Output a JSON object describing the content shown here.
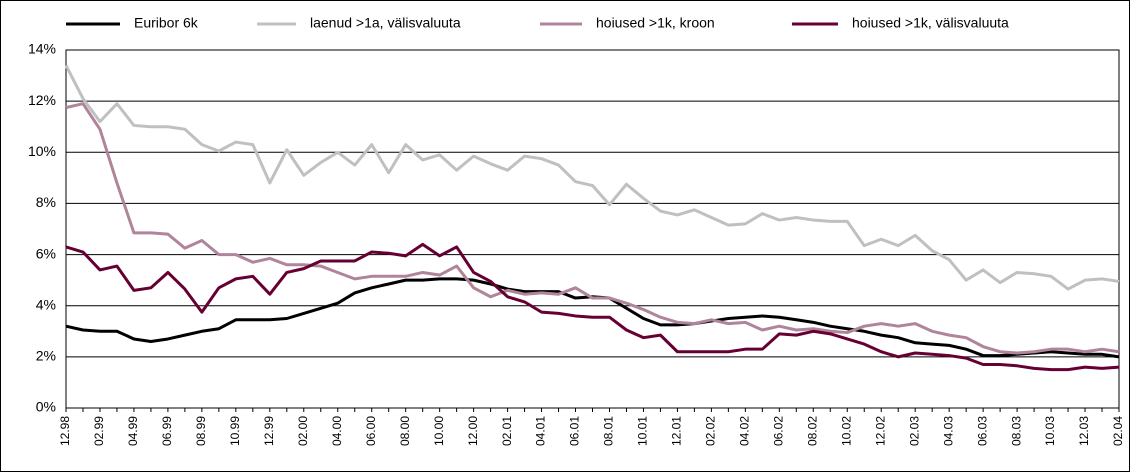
{
  "chart_data": {
    "type": "line",
    "categories": [
      "12.98",
      null,
      "02.99",
      null,
      "04.99",
      null,
      "06.99",
      null,
      "08.99",
      null,
      "10.99",
      null,
      "12.99",
      null,
      "02.00",
      null,
      "04.00",
      null,
      "06.00",
      null,
      "08.00",
      null,
      "10.00",
      null,
      "12.00",
      null,
      "02.01",
      null,
      "04.01",
      null,
      "06.01",
      null,
      "08.01",
      null,
      "10.01",
      null,
      "12.01",
      null,
      "02.02",
      null,
      "04.02",
      null,
      "06.02",
      null,
      "08.02",
      null,
      "10.02",
      null,
      "12.02",
      null,
      "02.03",
      null,
      "04.03",
      null,
      "06.03",
      null,
      "08.03",
      null,
      "10.03",
      null,
      "12.03",
      null,
      "02.04"
    ],
    "series": [
      {
        "name": "Euribor 6k",
        "color": "#000000",
        "values": [
          3.2,
          3.05,
          3.0,
          3.0,
          2.7,
          2.6,
          2.7,
          2.85,
          3.0,
          3.1,
          3.45,
          3.45,
          3.45,
          3.5,
          3.7,
          3.9,
          4.1,
          4.5,
          4.7,
          4.85,
          5.0,
          5.0,
          5.05,
          5.05,
          5.0,
          4.85,
          4.65,
          4.55,
          4.55,
          4.55,
          4.3,
          4.35,
          4.3,
          3.9,
          3.5,
          3.25,
          3.25,
          3.3,
          3.4,
          3.5,
          3.55,
          3.6,
          3.55,
          3.45,
          3.35,
          3.2,
          3.1,
          3.0,
          2.85,
          2.75,
          2.55,
          2.5,
          2.45,
          2.3,
          2.05,
          2.05,
          2.1,
          2.15,
          2.2,
          2.15,
          2.1,
          2.1,
          2.0
        ]
      },
      {
        "name": "laenud >1a, välisvaluuta",
        "color": "#c0c0c0",
        "values": [
          13.4,
          12.1,
          11.2,
          11.9,
          11.05,
          11.0,
          11.0,
          10.9,
          10.3,
          10.05,
          10.4,
          10.3,
          8.8,
          10.1,
          9.1,
          9.6,
          10.0,
          9.5,
          10.3,
          9.2,
          10.3,
          9.7,
          9.9,
          9.3,
          9.85,
          9.55,
          9.3,
          9.85,
          9.75,
          9.5,
          8.85,
          8.7,
          7.95,
          8.75,
          8.2,
          7.7,
          7.55,
          7.75,
          7.45,
          7.15,
          7.2,
          7.6,
          7.35,
          7.45,
          7.35,
          7.3,
          7.3,
          6.35,
          6.6,
          6.35,
          6.75,
          6.15,
          5.8,
          5.0,
          5.4,
          4.9,
          5.3,
          5.25,
          5.15,
          4.65,
          5.0,
          5.05,
          4.95
        ]
      },
      {
        "name": "hoiused >1k, kroon",
        "color": "#b0849a",
        "values": [
          11.75,
          11.9,
          10.9,
          8.8,
          6.85,
          6.85,
          6.8,
          6.25,
          6.55,
          6.0,
          6.0,
          5.7,
          5.85,
          5.6,
          5.6,
          5.55,
          5.3,
          5.05,
          5.15,
          5.15,
          5.15,
          5.3,
          5.2,
          5.55,
          4.7,
          4.35,
          4.6,
          4.45,
          4.5,
          4.45,
          4.7,
          4.3,
          4.3,
          4.1,
          3.85,
          3.55,
          3.35,
          3.3,
          3.45,
          3.3,
          3.35,
          3.05,
          3.2,
          3.05,
          3.1,
          3.0,
          2.95,
          3.2,
          3.3,
          3.2,
          3.3,
          3.0,
          2.85,
          2.75,
          2.4,
          2.2,
          2.15,
          2.2,
          2.3,
          2.3,
          2.2,
          2.3,
          2.2
        ]
      },
      {
        "name": "hoiused >1k, välisvaluuta",
        "color": "#660033",
        "values": [
          6.3,
          6.1,
          5.4,
          5.55,
          4.6,
          4.7,
          5.3,
          4.65,
          3.75,
          4.7,
          5.05,
          5.15,
          4.45,
          5.3,
          5.45,
          5.75,
          5.75,
          5.75,
          6.1,
          6.05,
          5.95,
          6.4,
          5.95,
          6.3,
          5.3,
          4.95,
          4.35,
          4.15,
          3.75,
          3.7,
          3.6,
          3.55,
          3.55,
          3.05,
          2.75,
          2.85,
          2.2,
          2.2,
          2.2,
          2.2,
          2.3,
          2.3,
          2.9,
          2.85,
          3.0,
          2.9,
          2.7,
          2.5,
          2.2,
          2.0,
          2.15,
          2.1,
          2.05,
          1.95,
          1.7,
          1.7,
          1.65,
          1.55,
          1.5,
          1.5,
          1.6,
          1.55,
          1.6
        ]
      }
    ],
    "ylim": [
      0,
      14
    ],
    "yticks": [
      {
        "value": 0,
        "label": "0%"
      },
      {
        "value": 2,
        "label": "2%"
      },
      {
        "value": 4,
        "label": "4%"
      },
      {
        "value": 6,
        "label": "6%"
      },
      {
        "value": 8,
        "label": "8%"
      },
      {
        "value": 10,
        "label": "10%"
      },
      {
        "value": 12,
        "label": "12%"
      },
      {
        "value": 14,
        "label": "14%"
      }
    ],
    "grid": true,
    "legend": "top"
  }
}
